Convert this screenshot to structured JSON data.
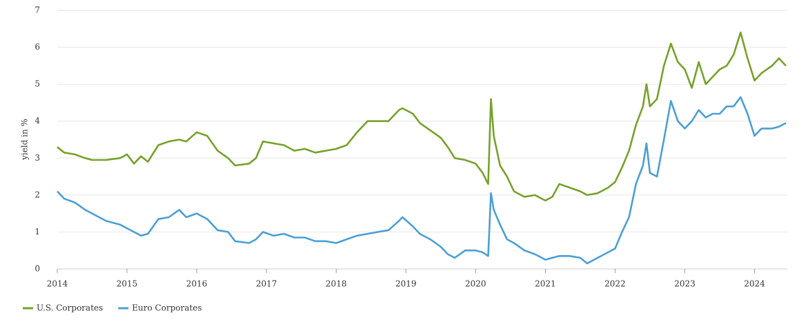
{
  "chart_data": {
    "type": "line",
    "y_label": "yield in %",
    "x": [
      2014,
      2014.1,
      2014.25,
      2014.4,
      2014.5,
      2014.7,
      2014.9,
      2015,
      2015.1,
      2015.2,
      2015.3,
      2015.45,
      2015.6,
      2015.75,
      2015.85,
      2016,
      2016.15,
      2016.3,
      2016.45,
      2016.55,
      2016.75,
      2016.85,
      2016.95,
      2017.1,
      2017.25,
      2017.4,
      2017.55,
      2017.7,
      2017.85,
      2018,
      2018.15,
      2018.3,
      2018.45,
      2018.6,
      2018.75,
      2018.9,
      2018.95,
      2019.1,
      2019.2,
      2019.35,
      2019.5,
      2019.6,
      2019.7,
      2019.85,
      2020,
      2020.1,
      2020.18,
      2020.22,
      2020.26,
      2020.35,
      2020.45,
      2020.55,
      2020.7,
      2020.85,
      2021,
      2021.1,
      2021.2,
      2021.35,
      2021.5,
      2021.6,
      2021.75,
      2021.9,
      2022,
      2022.1,
      2022.2,
      2022.3,
      2022.4,
      2022.45,
      2022.5,
      2022.6,
      2022.7,
      2022.8,
      2022.9,
      2023,
      2023.1,
      2023.2,
      2023.3,
      2023.4,
      2023.5,
      2023.6,
      2023.7,
      2023.8,
      2023.9,
      2024,
      2024.1,
      2024.25,
      2024.35,
      2024.45
    ],
    "series": [
      {
        "name": "U.S. Corporates",
        "color": "#76a12a",
        "values": [
          3.3,
          3.15,
          3.1,
          3.0,
          2.95,
          2.95,
          3.0,
          3.1,
          2.85,
          3.05,
          2.9,
          3.35,
          3.45,
          3.5,
          3.45,
          3.7,
          3.6,
          3.2,
          3.0,
          2.8,
          2.85,
          3.0,
          3.45,
          3.4,
          3.35,
          3.2,
          3.25,
          3.15,
          3.2,
          3.25,
          3.35,
          3.7,
          4.0,
          4.0,
          4.0,
          4.3,
          4.35,
          4.2,
          3.95,
          3.75,
          3.55,
          3.3,
          3.0,
          2.95,
          2.85,
          2.6,
          2.3,
          4.6,
          3.6,
          2.8,
          2.5,
          2.1,
          1.95,
          2.0,
          1.85,
          1.95,
          2.3,
          2.2,
          2.1,
          2.0,
          2.05,
          2.2,
          2.35,
          2.75,
          3.2,
          3.9,
          4.4,
          5.0,
          4.4,
          4.6,
          5.5,
          6.1,
          5.6,
          5.4,
          4.9,
          5.6,
          5.0,
          5.2,
          5.4,
          5.5,
          5.8,
          6.4,
          5.7,
          5.1,
          5.3,
          5.5,
          5.7,
          5.5
        ]
      },
      {
        "name": "Euro Corporates",
        "color": "#4a9fd4",
        "values": [
          2.1,
          1.9,
          1.8,
          1.6,
          1.5,
          1.3,
          1.2,
          1.1,
          1.0,
          0.9,
          0.95,
          1.35,
          1.4,
          1.6,
          1.4,
          1.5,
          1.35,
          1.05,
          1.0,
          0.75,
          0.7,
          0.8,
          1.0,
          0.9,
          0.95,
          0.85,
          0.85,
          0.75,
          0.75,
          0.7,
          0.8,
          0.9,
          0.95,
          1.0,
          1.05,
          1.3,
          1.4,
          1.15,
          0.95,
          0.8,
          0.6,
          0.4,
          0.3,
          0.5,
          0.5,
          0.45,
          0.35,
          2.05,
          1.6,
          1.2,
          0.8,
          0.7,
          0.5,
          0.4,
          0.25,
          0.3,
          0.35,
          0.35,
          0.3,
          0.15,
          0.3,
          0.45,
          0.55,
          1.0,
          1.4,
          2.3,
          2.8,
          3.4,
          2.6,
          2.5,
          3.5,
          4.55,
          4.0,
          3.8,
          4.0,
          4.3,
          4.1,
          4.2,
          4.2,
          4.4,
          4.4,
          4.65,
          4.2,
          3.6,
          3.8,
          3.8,
          3.85,
          3.95
        ]
      }
    ],
    "xlim": [
      2014,
      2024.45
    ],
    "xticks": [
      2014,
      2015,
      2016,
      2017,
      2018,
      2019,
      2020,
      2021,
      2022,
      2023,
      2024
    ],
    "ylim": [
      0,
      7
    ],
    "yticks": [
      0,
      1,
      2,
      3,
      4,
      5,
      6,
      7
    ],
    "grid": true
  }
}
